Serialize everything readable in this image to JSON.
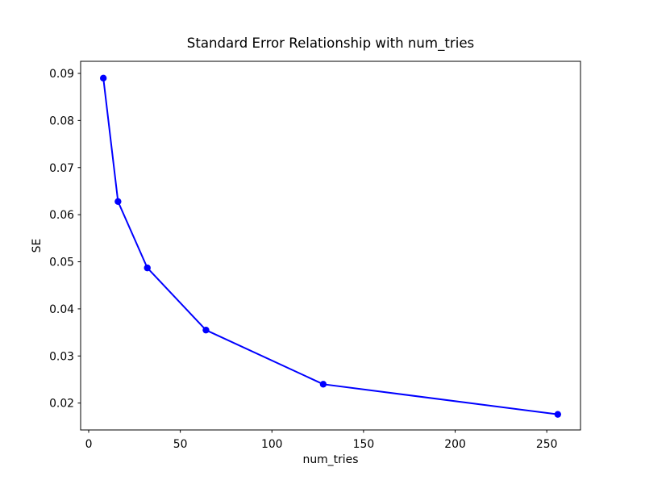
{
  "chart_data": {
    "type": "line",
    "title": "Standard Error Relationship with num_tries",
    "xlabel": "num_tries",
    "ylabel": "SE",
    "series": [
      {
        "name": "SE",
        "x": [
          8,
          16,
          32,
          64,
          128,
          256
        ],
        "y": [
          0.089,
          0.0628,
          0.0487,
          0.0355,
          0.024,
          0.0176
        ],
        "line_color": "#0000ff",
        "marker": "circle"
      }
    ],
    "x_ticks": [
      0,
      50,
      100,
      150,
      200,
      250
    ],
    "y_ticks": [
      0.02,
      0.03,
      0.04,
      0.05,
      0.06,
      0.07,
      0.08,
      0.09
    ],
    "xlim": [
      -4.4,
      268.4
    ],
    "ylim": [
      0.01429,
      0.09257
    ],
    "grid": false,
    "legend_position": "none",
    "plot_bg_color": "#ffffff",
    "spine_color": "#000000"
  }
}
